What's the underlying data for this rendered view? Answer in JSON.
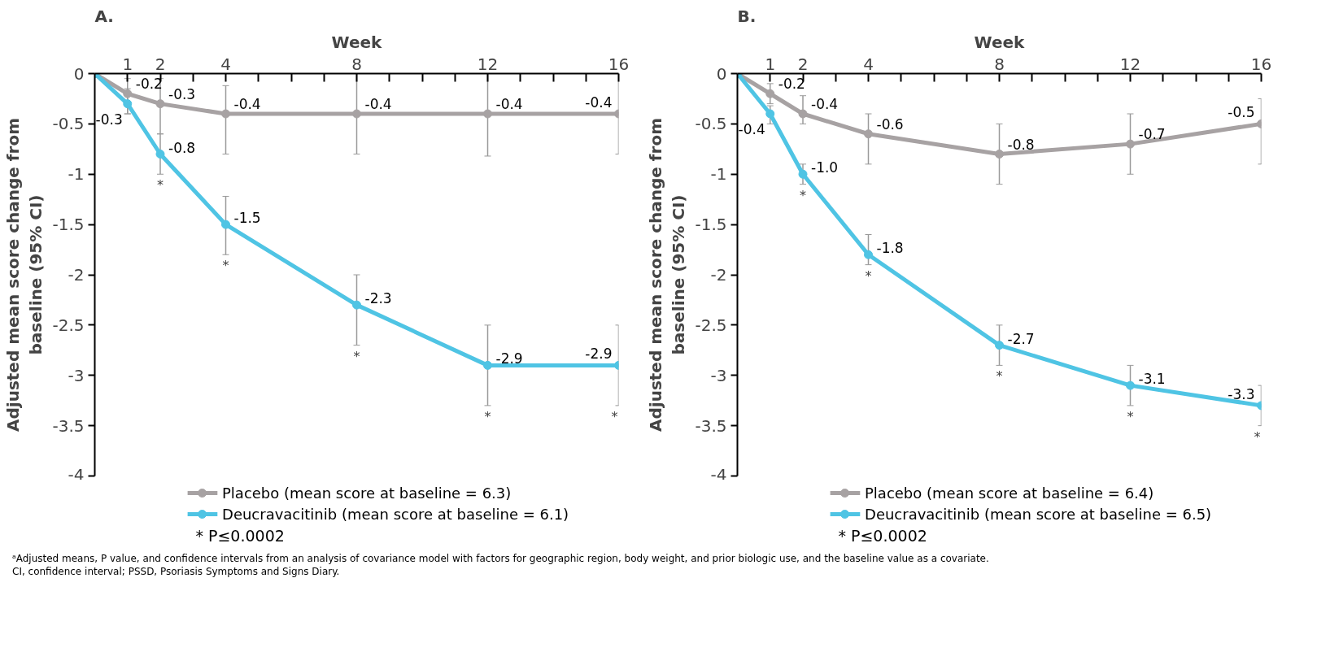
{
  "chart_data": [
    {
      "type": "line",
      "title": "A.",
      "xlabel": "Week",
      "ylabel": "Adjusted mean score change from baseline (95% CI)",
      "x": [
        0,
        1,
        2,
        4,
        8,
        12,
        16
      ],
      "xlim": [
        0,
        16
      ],
      "xticks": [
        1,
        2,
        {
          "value": 3,
          "label": null
        },
        4,
        {
          "value": 5,
          "label": null
        },
        {
          "value": 6,
          "label": null
        },
        {
          "value": 7,
          "label": null
        },
        8,
        {
          "value": 9,
          "label": null
        },
        {
          "value": 10,
          "label": null
        },
        {
          "value": 11,
          "label": null
        },
        12,
        {
          "value": 13,
          "label": null
        },
        {
          "value": 14,
          "label": null
        },
        {
          "value": 15,
          "label": null
        },
        16
      ],
      "ylim": [
        -4,
        0
      ],
      "yticks": [
        0,
        -0.5,
        -1,
        -1.5,
        -2,
        -2.5,
        -3,
        -3.5,
        -4
      ],
      "series": [
        {
          "name": "Placebo (mean score at baseline = 6.3)",
          "color": "#a7a2a3",
          "values": [
            0,
            -0.2,
            -0.3,
            -0.4,
            -0.4,
            -0.4,
            -0.4
          ],
          "value_labels": [
            null,
            "-0.2",
            "-0.3",
            "-0.4",
            "-0.4",
            "-0.4",
            "-0.4"
          ],
          "errors": [
            null,
            [
              -0.4,
              -0.05
            ],
            [
              -0.6,
              -0.05
            ],
            [
              -0.8,
              -0.12
            ],
            [
              -0.8,
              0
            ],
            [
              -0.82,
              0
            ],
            [
              -0.8,
              0
            ]
          ]
        },
        {
          "name": "Deucravacitinib (mean score at baseline = 6.1)",
          "color": "#4fc4e4",
          "values": [
            0,
            -0.3,
            -0.8,
            -1.5,
            -2.3,
            -2.9,
            -2.9
          ],
          "value_labels": [
            null,
            "-0.3",
            "-0.8",
            "-1.5",
            "-2.3",
            "-2.9",
            "-2.9"
          ],
          "errors": [
            null,
            [
              -0.4,
              -0.15
            ],
            [
              -1.0,
              -0.6
            ],
            [
              -1.8,
              -1.22
            ],
            [
              -2.7,
              -2.0
            ],
            [
              -3.3,
              -2.5
            ],
            [
              -3.3,
              -2.5
            ]
          ]
        }
      ],
      "marker": "circle",
      "grid": false,
      "legend": "bottom",
      "annotations": [
        {
          "text": "*",
          "x": 2,
          "y": -1.0
        },
        {
          "text": "*",
          "x": 4,
          "y": -1.8
        },
        {
          "text": "*",
          "x": 8,
          "y": -2.7
        },
        {
          "text": "*",
          "x": 12,
          "y": -3.3
        },
        {
          "text": "*",
          "x": 16,
          "y": -3.3
        },
        "* P≤0.0002"
      ]
    },
    {
      "type": "line",
      "title": "B.",
      "xlabel": "Week",
      "ylabel": "Adjusted mean score change from baseline (95% CI)",
      "x": [
        0,
        1,
        2,
        4,
        8,
        12,
        16
      ],
      "xlim": [
        0,
        16
      ],
      "xticks": [
        1,
        2,
        {
          "value": 3,
          "label": null
        },
        4,
        {
          "value": 5,
          "label": null
        },
        {
          "value": 6,
          "label": null
        },
        {
          "value": 7,
          "label": null
        },
        8,
        {
          "value": 9,
          "label": null
        },
        {
          "value": 10,
          "label": null
        },
        {
          "value": 11,
          "label": null
        },
        12,
        {
          "value": 13,
          "label": null
        },
        {
          "value": 14,
          "label": null
        },
        {
          "value": 15,
          "label": null
        },
        16
      ],
      "ylim": [
        -4,
        0
      ],
      "yticks": [
        0,
        -0.5,
        -1,
        -1.5,
        -2,
        -2.5,
        -3,
        -3.5,
        -4
      ],
      "series": [
        {
          "name": "Placebo (mean score at baseline = 6.4)",
          "color": "#a7a2a3",
          "values": [
            0,
            -0.2,
            -0.4,
            -0.6,
            -0.8,
            -0.7,
            -0.5
          ],
          "value_labels": [
            null,
            "-0.2",
            "-0.4",
            "-0.6",
            "-0.8",
            "-0.7",
            "-0.5"
          ],
          "errors": [
            null,
            [
              -0.3,
              -0.1
            ],
            [
              -0.5,
              -0.22
            ],
            [
              -0.9,
              -0.4
            ],
            [
              -1.1,
              -0.5
            ],
            [
              -1.0,
              -0.4
            ],
            [
              -0.9,
              -0.25
            ]
          ]
        },
        {
          "name": "Deucravacitinib (mean score at baseline = 6.5)",
          "color": "#4fc4e4",
          "values": [
            0,
            -0.4,
            -1.0,
            -1.8,
            -2.7,
            -3.1,
            -3.3
          ],
          "value_labels": [
            null,
            "-0.4",
            "-1.0",
            "-1.8",
            "-2.7",
            "-3.1",
            "-3.3"
          ],
          "errors": [
            null,
            [
              -0.5,
              -0.32
            ],
            [
              -1.1,
              -0.9
            ],
            [
              -1.9,
              -1.6
            ],
            [
              -2.9,
              -2.5
            ],
            [
              -3.3,
              -2.9
            ],
            [
              -3.5,
              -3.1
            ]
          ]
        }
      ],
      "marker": "circle",
      "grid": false,
      "legend": "bottom",
      "annotations": [
        {
          "text": "*",
          "x": 2,
          "y": -1.1
        },
        {
          "text": "*",
          "x": 4,
          "y": -1.9
        },
        {
          "text": "*",
          "x": 8,
          "y": -2.9
        },
        {
          "text": "*",
          "x": 12,
          "y": -3.3
        },
        {
          "text": "*",
          "x": 16,
          "y": -3.5
        },
        "* P≤0.0002",
        "ᵃAdjusted means, P value, and confidence intervals from an analysis of covariance model with factors for geographic region, body weight, and prior biologic use, and the baseline value as a covariate.",
        "CI, confidence interval; PSSD, Psoriasis Symptoms and Signs Diary."
      ]
    }
  ]
}
